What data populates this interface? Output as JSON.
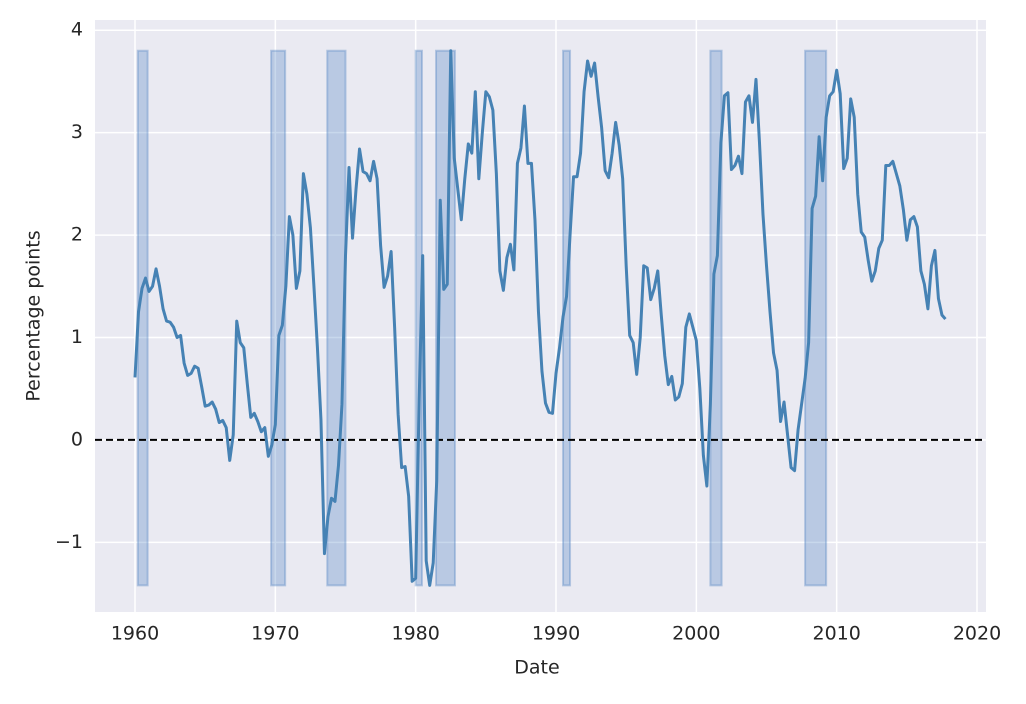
{
  "chart_data": {
    "type": "line",
    "xlabel": "Date",
    "ylabel": "Percentage points",
    "xlim": [
      1957.15,
      2020.64
    ],
    "ylim": [
      -1.68,
      4.1
    ],
    "xticks": [
      1960,
      1970,
      1980,
      1990,
      2000,
      2010,
      2020
    ],
    "yticks": [
      {
        "value": -1,
        "label": "−1"
      },
      0,
      1,
      2,
      3,
      4
    ],
    "grid": true,
    "reference_line": 0,
    "shade_ylim": [
      -1.42,
      3.8
    ],
    "shade_color": "#4a7fc1",
    "shaded_periods": [
      [
        1960.2,
        1960.9
      ],
      [
        1969.7,
        1970.7
      ],
      [
        1973.7,
        1975.0
      ],
      [
        1980.0,
        1980.45
      ],
      [
        1981.45,
        1982.8
      ],
      [
        1990.5,
        1991.0
      ],
      [
        2001.0,
        2001.8
      ],
      [
        2007.75,
        2009.25
      ]
    ],
    "x": [
      1960,
      1960.25,
      1960.5,
      1960.75,
      1961,
      1961.25,
      1961.5,
      1961.75,
      1962,
      1962.25,
      1962.5,
      1962.75,
      1963,
      1963.25,
      1963.5,
      1963.75,
      1964,
      1964.25,
      1964.5,
      1964.75,
      1965,
      1965.25,
      1965.5,
      1965.75,
      1966,
      1966.25,
      1966.5,
      1966.75,
      1967,
      1967.25,
      1967.5,
      1967.75,
      1968,
      1968.25,
      1968.5,
      1968.75,
      1969,
      1969.25,
      1969.5,
      1969.75,
      1970,
      1970.25,
      1970.5,
      1970.75,
      1971,
      1971.25,
      1971.5,
      1971.75,
      1972,
      1972.25,
      1972.5,
      1972.75,
      1973,
      1973.25,
      1973.5,
      1973.75,
      1974,
      1974.25,
      1974.5,
      1974.75,
      1975,
      1975.25,
      1975.5,
      1975.75,
      1976,
      1976.25,
      1976.5,
      1976.75,
      1977,
      1977.25,
      1977.5,
      1977.75,
      1978,
      1978.25,
      1978.5,
      1978.75,
      1979,
      1979.25,
      1979.5,
      1979.75,
      1980,
      1980.25,
      1980.5,
      1980.75,
      1981,
      1981.25,
      1981.5,
      1981.75,
      1982,
      1982.25,
      1982.5,
      1982.75,
      1983,
      1983.25,
      1983.5,
      1983.75,
      1984,
      1984.25,
      1984.5,
      1984.75,
      1985,
      1985.25,
      1985.5,
      1985.75,
      1986,
      1986.25,
      1986.5,
      1986.75,
      1987,
      1987.25,
      1987.5,
      1987.75,
      1988,
      1988.25,
      1988.5,
      1988.75,
      1989,
      1989.25,
      1989.5,
      1989.75,
      1990,
      1990.25,
      1990.5,
      1990.75,
      1991,
      1991.25,
      1991.5,
      1991.75,
      1992,
      1992.25,
      1992.5,
      1992.75,
      1993,
      1993.25,
      1993.5,
      1993.75,
      1994,
      1994.25,
      1994.5,
      1994.75,
      1995,
      1995.25,
      1995.5,
      1995.75,
      1996,
      1996.25,
      1996.5,
      1996.75,
      1997,
      1997.25,
      1997.5,
      1997.75,
      1998,
      1998.25,
      1998.5,
      1998.75,
      1999,
      1999.25,
      1999.5,
      1999.75,
      2000,
      2000.25,
      2000.5,
      2000.75,
      2001,
      2001.25,
      2001.5,
      2001.75,
      2002,
      2002.25,
      2002.5,
      2002.75,
      2003,
      2003.25,
      2003.5,
      2003.75,
      2004,
      2004.25,
      2004.5,
      2004.75,
      2005,
      2005.25,
      2005.5,
      2005.75,
      2006,
      2006.25,
      2006.5,
      2006.75,
      2007,
      2007.25,
      2007.5,
      2007.75,
      2008,
      2008.25,
      2008.5,
      2008.75,
      2009,
      2009.25,
      2009.5,
      2009.75,
      2010,
      2010.25,
      2010.5,
      2010.75,
      2011,
      2011.25,
      2011.5,
      2011.75,
      2012,
      2012.25,
      2012.5,
      2012.75,
      2013,
      2013.25,
      2013.5,
      2013.75,
      2014,
      2014.25,
      2014.5,
      2014.75,
      2015,
      2015.25,
      2015.5,
      2015.75,
      2016,
      2016.25,
      2016.5,
      2016.75,
      2017,
      2017.25,
      2017.5,
      2017.75
    ],
    "series": [
      {
        "color": "#4682b4",
        "values": [
          0.61,
          1.25,
          1.48,
          1.58,
          1.45,
          1.5,
          1.67,
          1.5,
          1.28,
          1.16,
          1.15,
          1.1,
          1.0,
          1.02,
          0.75,
          0.63,
          0.65,
          0.72,
          0.7,
          0.52,
          0.33,
          0.34,
          0.37,
          0.3,
          0.17,
          0.19,
          0.12,
          -0.2,
          0.05,
          1.16,
          0.95,
          0.9,
          0.55,
          0.22,
          0.26,
          0.18,
          0.08,
          0.12,
          -0.16,
          -0.05,
          0.15,
          1.02,
          1.12,
          1.5,
          2.18,
          2.0,
          1.48,
          1.65,
          2.6,
          2.4,
          2.07,
          1.5,
          0.9,
          0.2,
          -1.11,
          -0.75,
          -0.57,
          -0.6,
          -0.25,
          0.35,
          1.8,
          2.66,
          1.97,
          2.45,
          2.84,
          2.62,
          2.6,
          2.53,
          2.72,
          2.55,
          1.9,
          1.49,
          1.6,
          1.84,
          1.1,
          0.25,
          -0.27,
          -0.26,
          -0.55,
          -1.38,
          -1.35,
          0.4,
          1.8,
          -1.18,
          -1.42,
          -1.2,
          -0.4,
          2.34,
          1.47,
          1.52,
          3.8,
          2.75,
          2.45,
          2.15,
          2.55,
          2.89,
          2.8,
          3.4,
          2.55,
          3.0,
          3.4,
          3.35,
          3.22,
          2.6,
          1.65,
          1.46,
          1.78,
          1.91,
          1.66,
          2.7,
          2.85,
          3.26,
          2.7,
          2.7,
          2.15,
          1.25,
          0.67,
          0.36,
          0.27,
          0.26,
          0.65,
          0.9,
          1.2,
          1.4,
          2.0,
          2.57,
          2.57,
          2.8,
          3.4,
          3.7,
          3.55,
          3.68,
          3.35,
          3.05,
          2.63,
          2.56,
          2.8,
          3.1,
          2.88,
          2.55,
          1.7,
          1.02,
          0.95,
          0.64,
          1.0,
          1.7,
          1.68,
          1.37,
          1.48,
          1.65,
          1.22,
          0.82,
          0.54,
          0.62,
          0.39,
          0.42,
          0.55,
          1.1,
          1.23,
          1.1,
          0.97,
          0.5,
          -0.15,
          -0.45,
          0.35,
          1.62,
          1.8,
          2.9,
          3.36,
          3.39,
          2.64,
          2.68,
          2.77,
          2.6,
          3.3,
          3.36,
          3.1,
          3.52,
          2.9,
          2.2,
          1.7,
          1.25,
          0.85,
          0.68,
          0.18,
          0.37,
          0.05,
          -0.27,
          -0.3,
          0.1,
          0.35,
          0.6,
          0.95,
          2.26,
          2.38,
          2.96,
          2.53,
          3.15,
          3.36,
          3.4,
          3.61,
          3.38,
          2.65,
          2.75,
          3.33,
          3.15,
          2.4,
          2.03,
          1.98,
          1.75,
          1.55,
          1.65,
          1.87,
          1.95,
          2.68,
          2.68,
          2.72,
          2.6,
          2.48,
          2.25,
          1.95,
          2.15,
          2.18,
          2.08,
          1.65,
          1.52,
          1.28,
          1.7,
          1.85,
          1.38,
          1.22,
          1.18
        ]
      }
    ]
  }
}
